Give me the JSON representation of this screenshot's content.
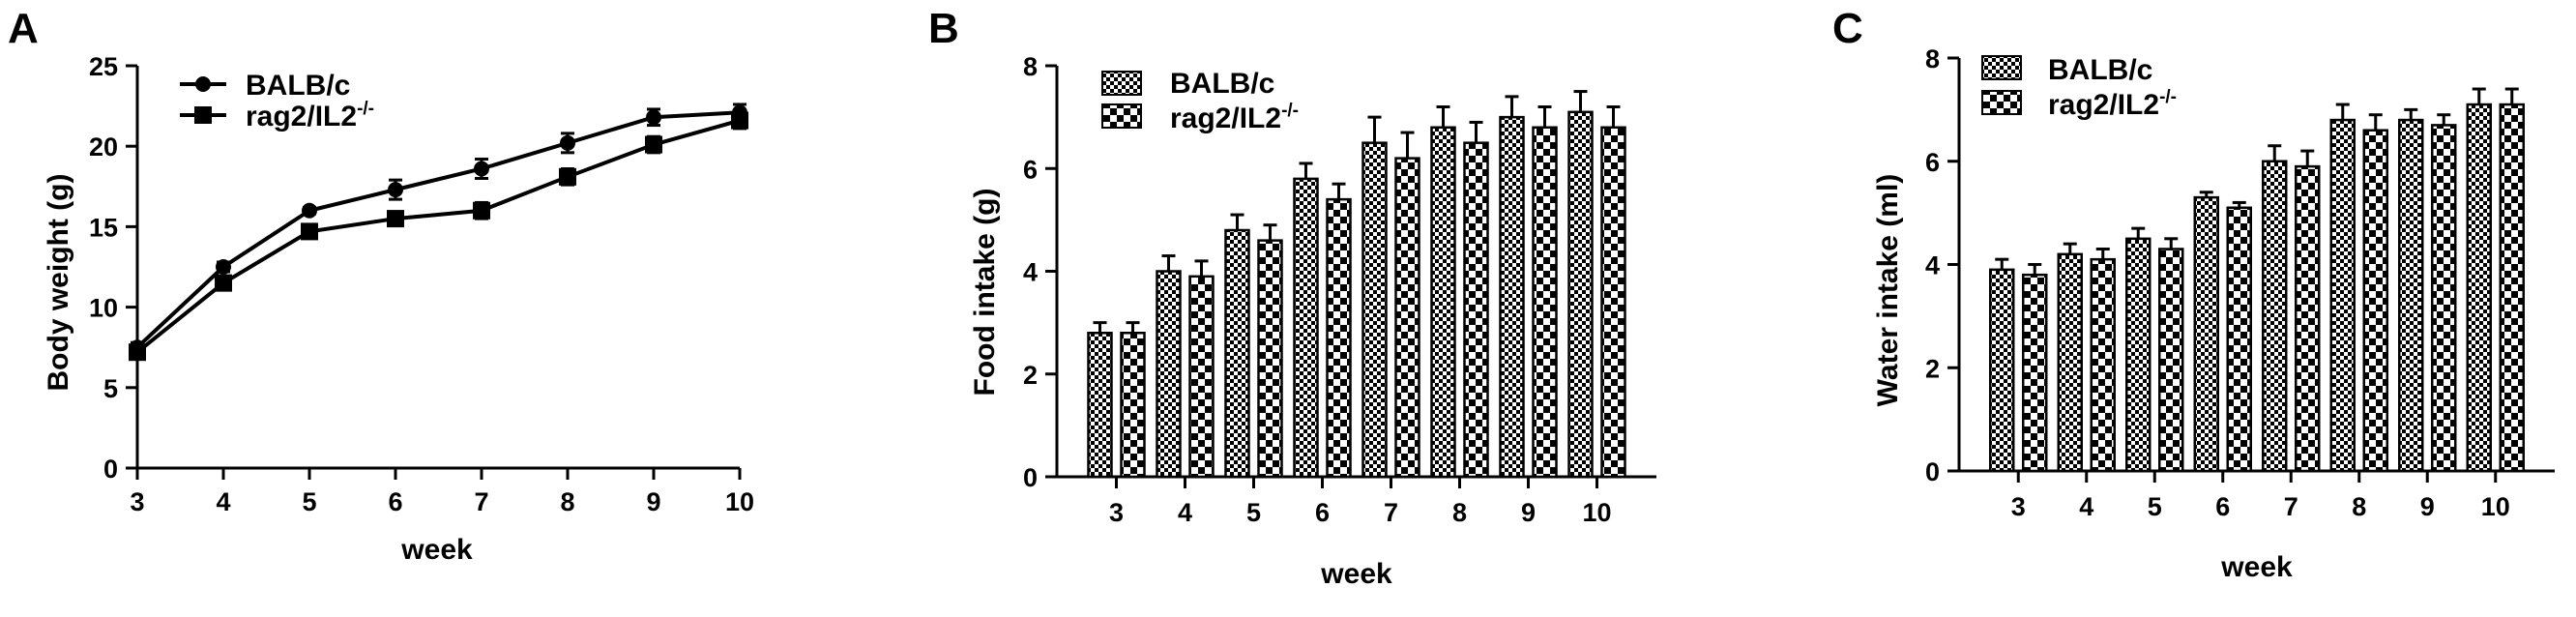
{
  "colors": {
    "ink": "#000000",
    "background": "#ffffff"
  },
  "panels": [
    {
      "letter": "A"
    },
    {
      "letter": "B"
    },
    {
      "letter": "C"
    }
  ],
  "chart_data": [
    {
      "type": "line",
      "panel": "A",
      "title": "",
      "xlabel": "week",
      "ylabel": "Body weight (g)",
      "x": [
        3,
        4,
        5,
        6,
        7,
        8,
        9,
        10
      ],
      "xlim": [
        3,
        10
      ],
      "ylim": [
        0,
        25
      ],
      "yticks": [
        0,
        5,
        10,
        15,
        20,
        25
      ],
      "grid": false,
      "legend_position": "top-left",
      "series": [
        {
          "name": "BALB/c",
          "marker": "circle",
          "values": [
            7.5,
            12.5,
            16.0,
            17.3,
            18.6,
            20.2,
            21.8,
            22.1
          ],
          "errors": [
            0.3,
            0.3,
            0.2,
            0.6,
            0.6,
            0.6,
            0.5,
            0.5
          ]
        },
        {
          "name": "rag2/IL2",
          "superscript": "-/-",
          "marker": "square",
          "values": [
            7.2,
            11.5,
            14.7,
            15.5,
            16.0,
            18.1,
            20.1,
            21.6
          ],
          "errors": [
            0.3,
            0.3,
            0.3,
            0.4,
            0.5,
            0.5,
            0.5,
            0.5
          ]
        }
      ]
    },
    {
      "type": "bar",
      "panel": "B",
      "title": "",
      "xlabel": "week",
      "ylabel": "Food intake (g)",
      "categories": [
        "3",
        "4",
        "5",
        "6",
        "7",
        "8",
        "9",
        "10"
      ],
      "ylim": [
        0,
        8
      ],
      "yticks": [
        0,
        2,
        4,
        6,
        8
      ],
      "grid": false,
      "legend_position": "top-left",
      "series": [
        {
          "name": "BALB/c",
          "pattern": "checker-fine",
          "values": [
            2.8,
            4.0,
            4.8,
            5.8,
            6.5,
            6.8,
            7.0,
            7.1
          ],
          "errors": [
            0.2,
            0.3,
            0.3,
            0.3,
            0.5,
            0.4,
            0.4,
            0.4
          ]
        },
        {
          "name": "rag2/IL2",
          "superscript": "-/-",
          "pattern": "checker-coarse",
          "values": [
            2.8,
            3.9,
            4.6,
            5.4,
            6.2,
            6.5,
            6.8,
            6.8
          ],
          "errors": [
            0.2,
            0.3,
            0.3,
            0.3,
            0.5,
            0.4,
            0.4,
            0.4
          ]
        }
      ]
    },
    {
      "type": "bar",
      "panel": "C",
      "title": "",
      "xlabel": "week",
      "ylabel": "Water intake (ml)",
      "categories": [
        "3",
        "4",
        "5",
        "6",
        "7",
        "8",
        "9",
        "10"
      ],
      "ylim": [
        0,
        8
      ],
      "yticks": [
        0,
        2,
        4,
        6,
        8
      ],
      "grid": false,
      "legend_position": "top-left",
      "series": [
        {
          "name": "BALB/c",
          "pattern": "checker-fine",
          "values": [
            3.9,
            4.2,
            4.5,
            5.3,
            6.0,
            6.8,
            6.8,
            7.1
          ],
          "errors": [
            0.2,
            0.2,
            0.2,
            0.1,
            0.3,
            0.3,
            0.2,
            0.3
          ]
        },
        {
          "name": "rag2/IL2",
          "superscript": "-/-",
          "pattern": "checker-coarse",
          "values": [
            3.8,
            4.1,
            4.3,
            5.1,
            5.9,
            6.6,
            6.7,
            7.1
          ],
          "errors": [
            0.2,
            0.2,
            0.2,
            0.1,
            0.3,
            0.3,
            0.2,
            0.3
          ]
        }
      ]
    }
  ]
}
